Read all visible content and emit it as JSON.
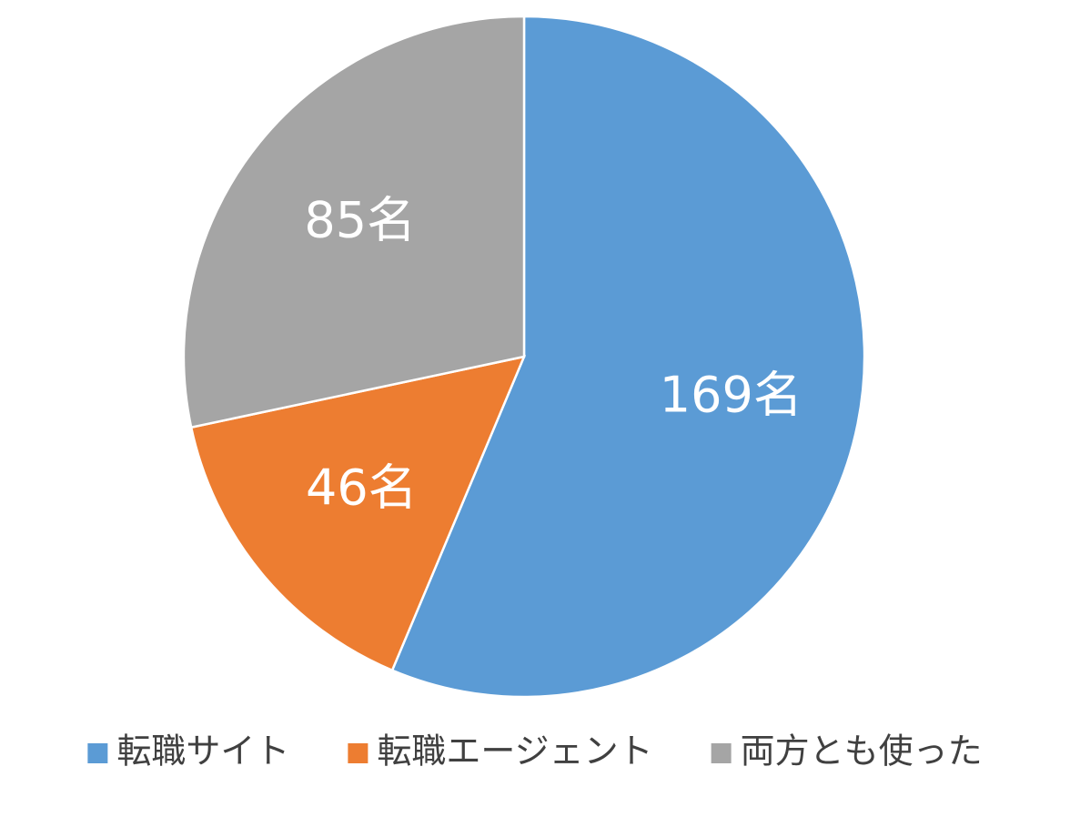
{
  "chart_data": {
    "type": "pie",
    "categories": [
      "転職サイト",
      "転職エージェント",
      "両方とも使った"
    ],
    "values": [
      169,
      46,
      85
    ],
    "value_labels": [
      "169名",
      "46名",
      "85名"
    ],
    "colors": [
      "#5b9bd5",
      "#ed7d31",
      "#a5a5a5"
    ],
    "legend": "bottom"
  }
}
